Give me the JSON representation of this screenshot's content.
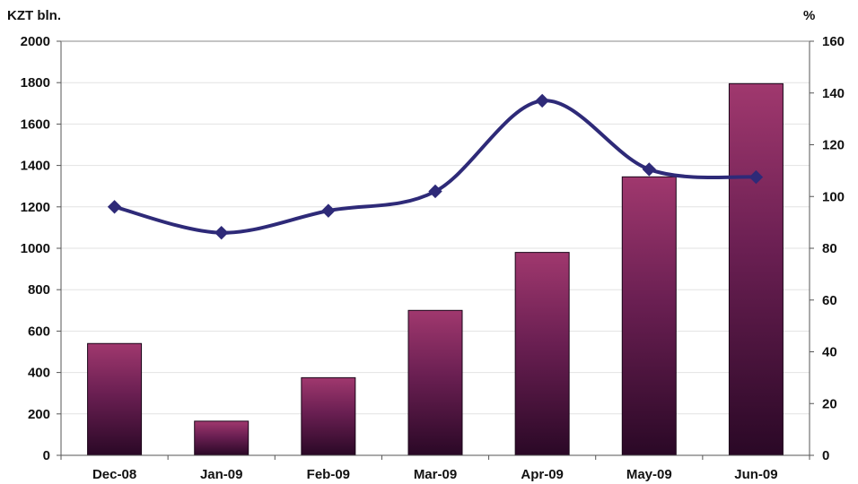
{
  "chart_data": {
    "type": "bar",
    "categories": [
      "Dec-08",
      "Jan-09",
      "Feb-09",
      "Mar-09",
      "Apr-09",
      "May-09",
      "Jun-09"
    ],
    "bar_values": [
      540,
      165,
      375,
      700,
      980,
      1345,
      1795
    ],
    "line_values": [
      96,
      86,
      94.5,
      102,
      137,
      110.5,
      107.5
    ],
    "left_axis": {
      "label": "KZT bln.",
      "ylim": [
        0,
        2000
      ],
      "ticks": [
        "0",
        "200",
        "400",
        "600",
        "800",
        "1000",
        "1200",
        "1400",
        "1600",
        "1800",
        "2000"
      ]
    },
    "right_axis": {
      "label": "%",
      "ylim": [
        0,
        160
      ],
      "ticks": [
        "0",
        "20",
        "40",
        "60",
        "80",
        "100",
        "120",
        "140",
        "160"
      ]
    },
    "bar_color_top": "#a0386e",
    "bar_color_bottom": "#2a0826",
    "line_color": "#2e2a78",
    "grid": true
  }
}
